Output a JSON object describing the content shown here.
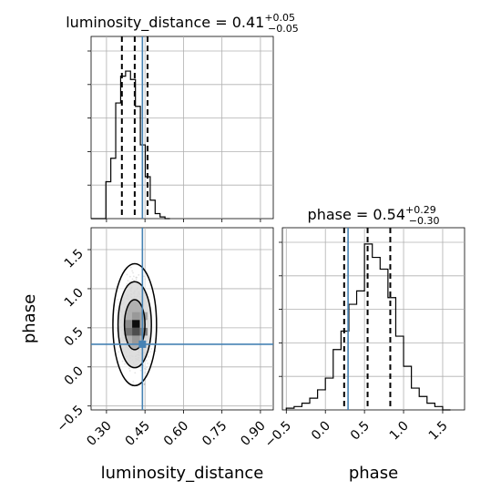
{
  "chart_data": [
    {
      "type": "histogram",
      "panel": "luminosity_distance-marginal",
      "title": {
        "name": "luminosity_distance",
        "value": "0.41",
        "plus": "+0.05",
        "minus": "−0.05"
      },
      "x_range": [
        0.24,
        0.95
      ],
      "bin_edges": [
        0.24,
        0.2592,
        0.2784,
        0.2976,
        0.3168,
        0.336,
        0.3552,
        0.3744,
        0.3936,
        0.4128,
        0.432,
        0.4512,
        0.4704,
        0.4896,
        0.5088,
        0.528,
        0.5472
      ],
      "counts": [
        0,
        0,
        0,
        0.22,
        0.36,
        0.69,
        0.85,
        0.88,
        0.83,
        0.67,
        0.44,
        0.25,
        0.11,
        0.03,
        0.01,
        0
      ],
      "quantiles": [
        0.36,
        0.41,
        0.46
      ],
      "truth": 0.44,
      "grid": true
    },
    {
      "type": "scatter-contour",
      "panel": "luminosity_distance-vs-phase",
      "x_range": [
        0.24,
        0.95
      ],
      "y_range": [
        -0.55,
        1.78
      ],
      "x_ticks": [
        "0.30",
        "0.45",
        "0.60",
        "0.75",
        "0.90"
      ],
      "y_ticks": [
        "−0.5",
        "0.0",
        "0.5",
        "1.0",
        "1.5"
      ],
      "x_tick_values": [
        0.3,
        0.45,
        0.6,
        0.75,
        0.9
      ],
      "y_tick_values": [
        -0.5,
        0.0,
        0.5,
        1.0,
        1.5
      ],
      "xlabel": "luminosity_distance",
      "ylabel": "phase",
      "center": [
        0.41,
        0.54
      ],
      "contours": [
        {
          "level": "inner",
          "rx": 0.04,
          "ry": 0.32
        },
        {
          "level": "middle",
          "rx": 0.065,
          "ry": 0.55
        },
        {
          "level": "outer",
          "rx": 0.085,
          "ry": 0.78
        }
      ],
      "density_cells": [
        {
          "x": 0.415,
          "y": 0.65,
          "v": 0.4
        },
        {
          "x": 0.385,
          "y": 0.55,
          "v": 0.45
        },
        {
          "x": 0.415,
          "y": 0.55,
          "v": 0.95
        },
        {
          "x": 0.385,
          "y": 0.45,
          "v": 0.55
        },
        {
          "x": 0.415,
          "y": 0.45,
          "v": 0.7
        },
        {
          "x": 0.445,
          "y": 0.45,
          "v": 0.5
        },
        {
          "x": 0.445,
          "y": 0.65,
          "v": 0.35
        },
        {
          "x": 0.415,
          "y": 0.35,
          "v": 0.4
        }
      ],
      "truth": [
        0.44,
        0.29
      ],
      "grid": true
    },
    {
      "type": "histogram",
      "panel": "phase-marginal",
      "title": {
        "name": "phase",
        "value": "0.54",
        "plus": "+0.29",
        "minus": "−0.30"
      },
      "x_range": [
        -0.55,
        1.78
      ],
      "x_ticks": [
        "−0.5",
        "0.0",
        "0.5",
        "1.0",
        "1.5"
      ],
      "x_tick_values": [
        -0.5,
        0.0,
        0.5,
        1.0,
        1.5
      ],
      "xlabel": "phase",
      "bin_edges": [
        -0.5,
        -0.4,
        -0.3,
        -0.2,
        -0.1,
        0.0,
        0.1,
        0.2,
        0.3,
        0.4,
        0.5,
        0.6,
        0.7,
        0.8,
        0.9,
        1.0,
        1.1,
        1.2,
        1.3,
        1.4,
        1.5,
        1.6
      ],
      "counts": [
        0.01,
        0.02,
        0.04,
        0.07,
        0.12,
        0.19,
        0.36,
        0.47,
        0.63,
        0.71,
        0.99,
        0.91,
        0.84,
        0.67,
        0.44,
        0.26,
        0.13,
        0.08,
        0.04,
        0.02,
        0.0
      ],
      "quantiles": [
        0.24,
        0.54,
        0.83
      ],
      "truth": 0.29,
      "grid": true
    }
  ]
}
